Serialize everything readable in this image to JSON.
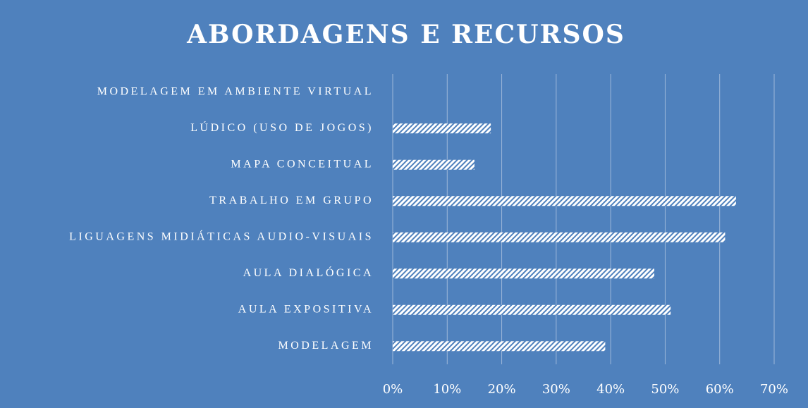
{
  "chart_data": {
    "type": "barh",
    "title": "ABORDAGENS E RECURSOS",
    "categories": [
      "MODELAGEM EM AMBIENTE VIRTUAL",
      "LÚDICO (USO DE JOGOS)",
      "MAPA CONCEITUAL",
      "TRABALHO EM GRUPO",
      "LIGUAGENS MIDIÁTICAS AUDIO-VISUAIS",
      "AULA DIALÓGICA",
      "AULA EXPOSITIVA",
      "MODELAGEM"
    ],
    "values": [
      0,
      18,
      15,
      63,
      61,
      48,
      51,
      39
    ],
    "color": "#ffffff",
    "background": "#4f81bd",
    "xlim": [
      0,
      70
    ],
    "xticks": [
      {
        "value": 0,
        "label": "0%"
      },
      {
        "value": 10,
        "label": "10%"
      },
      {
        "value": 20,
        "label": "20%"
      },
      {
        "value": 30,
        "label": "30%"
      },
      {
        "value": 40,
        "label": "40%"
      },
      {
        "value": 50,
        "label": "50%"
      },
      {
        "value": 60,
        "label": "60%"
      },
      {
        "value": 70,
        "label": "70%"
      }
    ],
    "grid": true
  }
}
